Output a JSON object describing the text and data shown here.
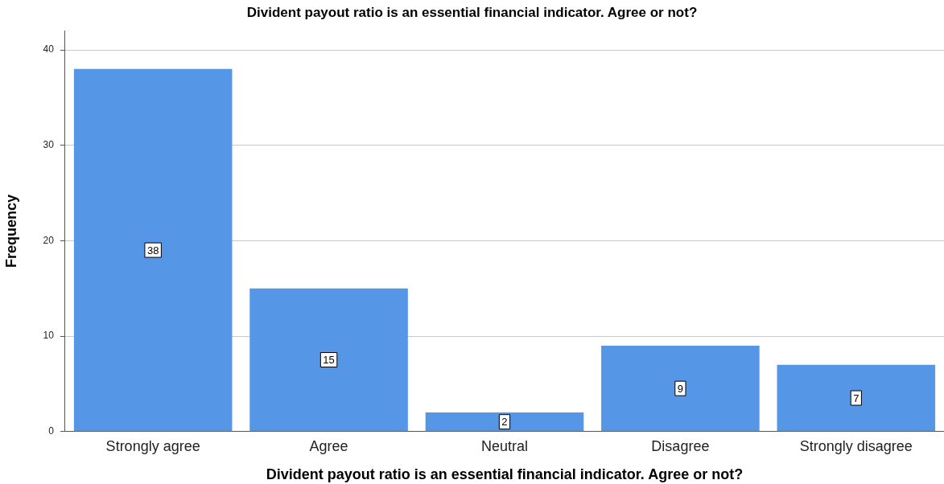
{
  "chart_data": {
    "type": "bar",
    "title": "Divident payout ratio is an essential financial indicator. Agree or not?",
    "xlabel": "Divident payout ratio is an essential financial indicator. Agree or not?",
    "ylabel": "Frequency",
    "categories": [
      "Strongly agree",
      "Agree",
      "Neutral",
      "Disagree",
      "Strongly disagree"
    ],
    "values": [
      38,
      15,
      2,
      9,
      7
    ],
    "color": "#5596e6",
    "ylim": [
      0,
      42
    ],
    "yticks": [
      0,
      10,
      20,
      30,
      40
    ],
    "grid": "y",
    "data_labels": true,
    "legend": false
  }
}
